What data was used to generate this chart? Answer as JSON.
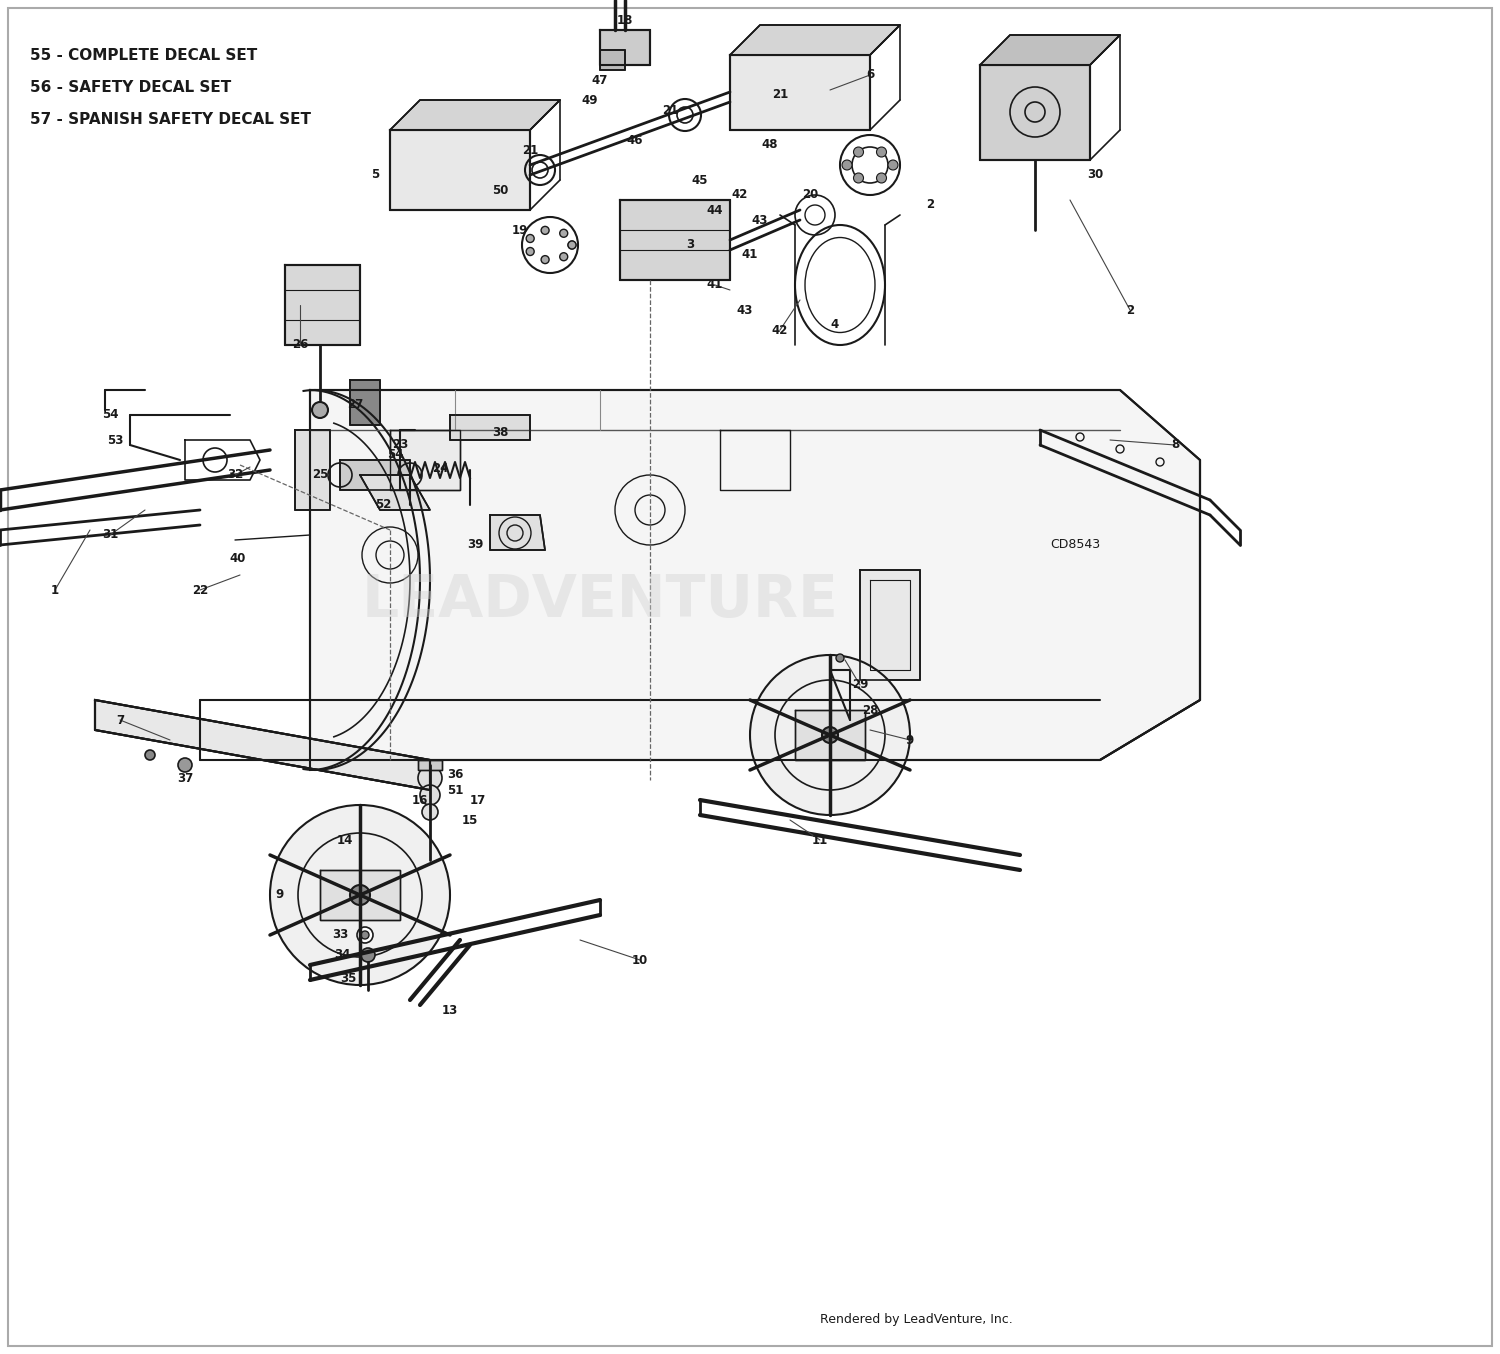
{
  "bg_color": "#ffffff",
  "line_color": "#1a1a1a",
  "text_color": "#1a1a1a",
  "figsize": [
    15.0,
    13.54
  ],
  "dpi": 100,
  "legend_lines": [
    "55 - COMPLETE DECAL SET",
    "56 - SAFETY DECAL SET",
    "57 - SPANISH SAFETY DECAL SET"
  ],
  "watermark": "LEADVENTURE",
  "footer": "Rendered by LeadVenture, Inc.",
  "diagram_code": "CD8543"
}
